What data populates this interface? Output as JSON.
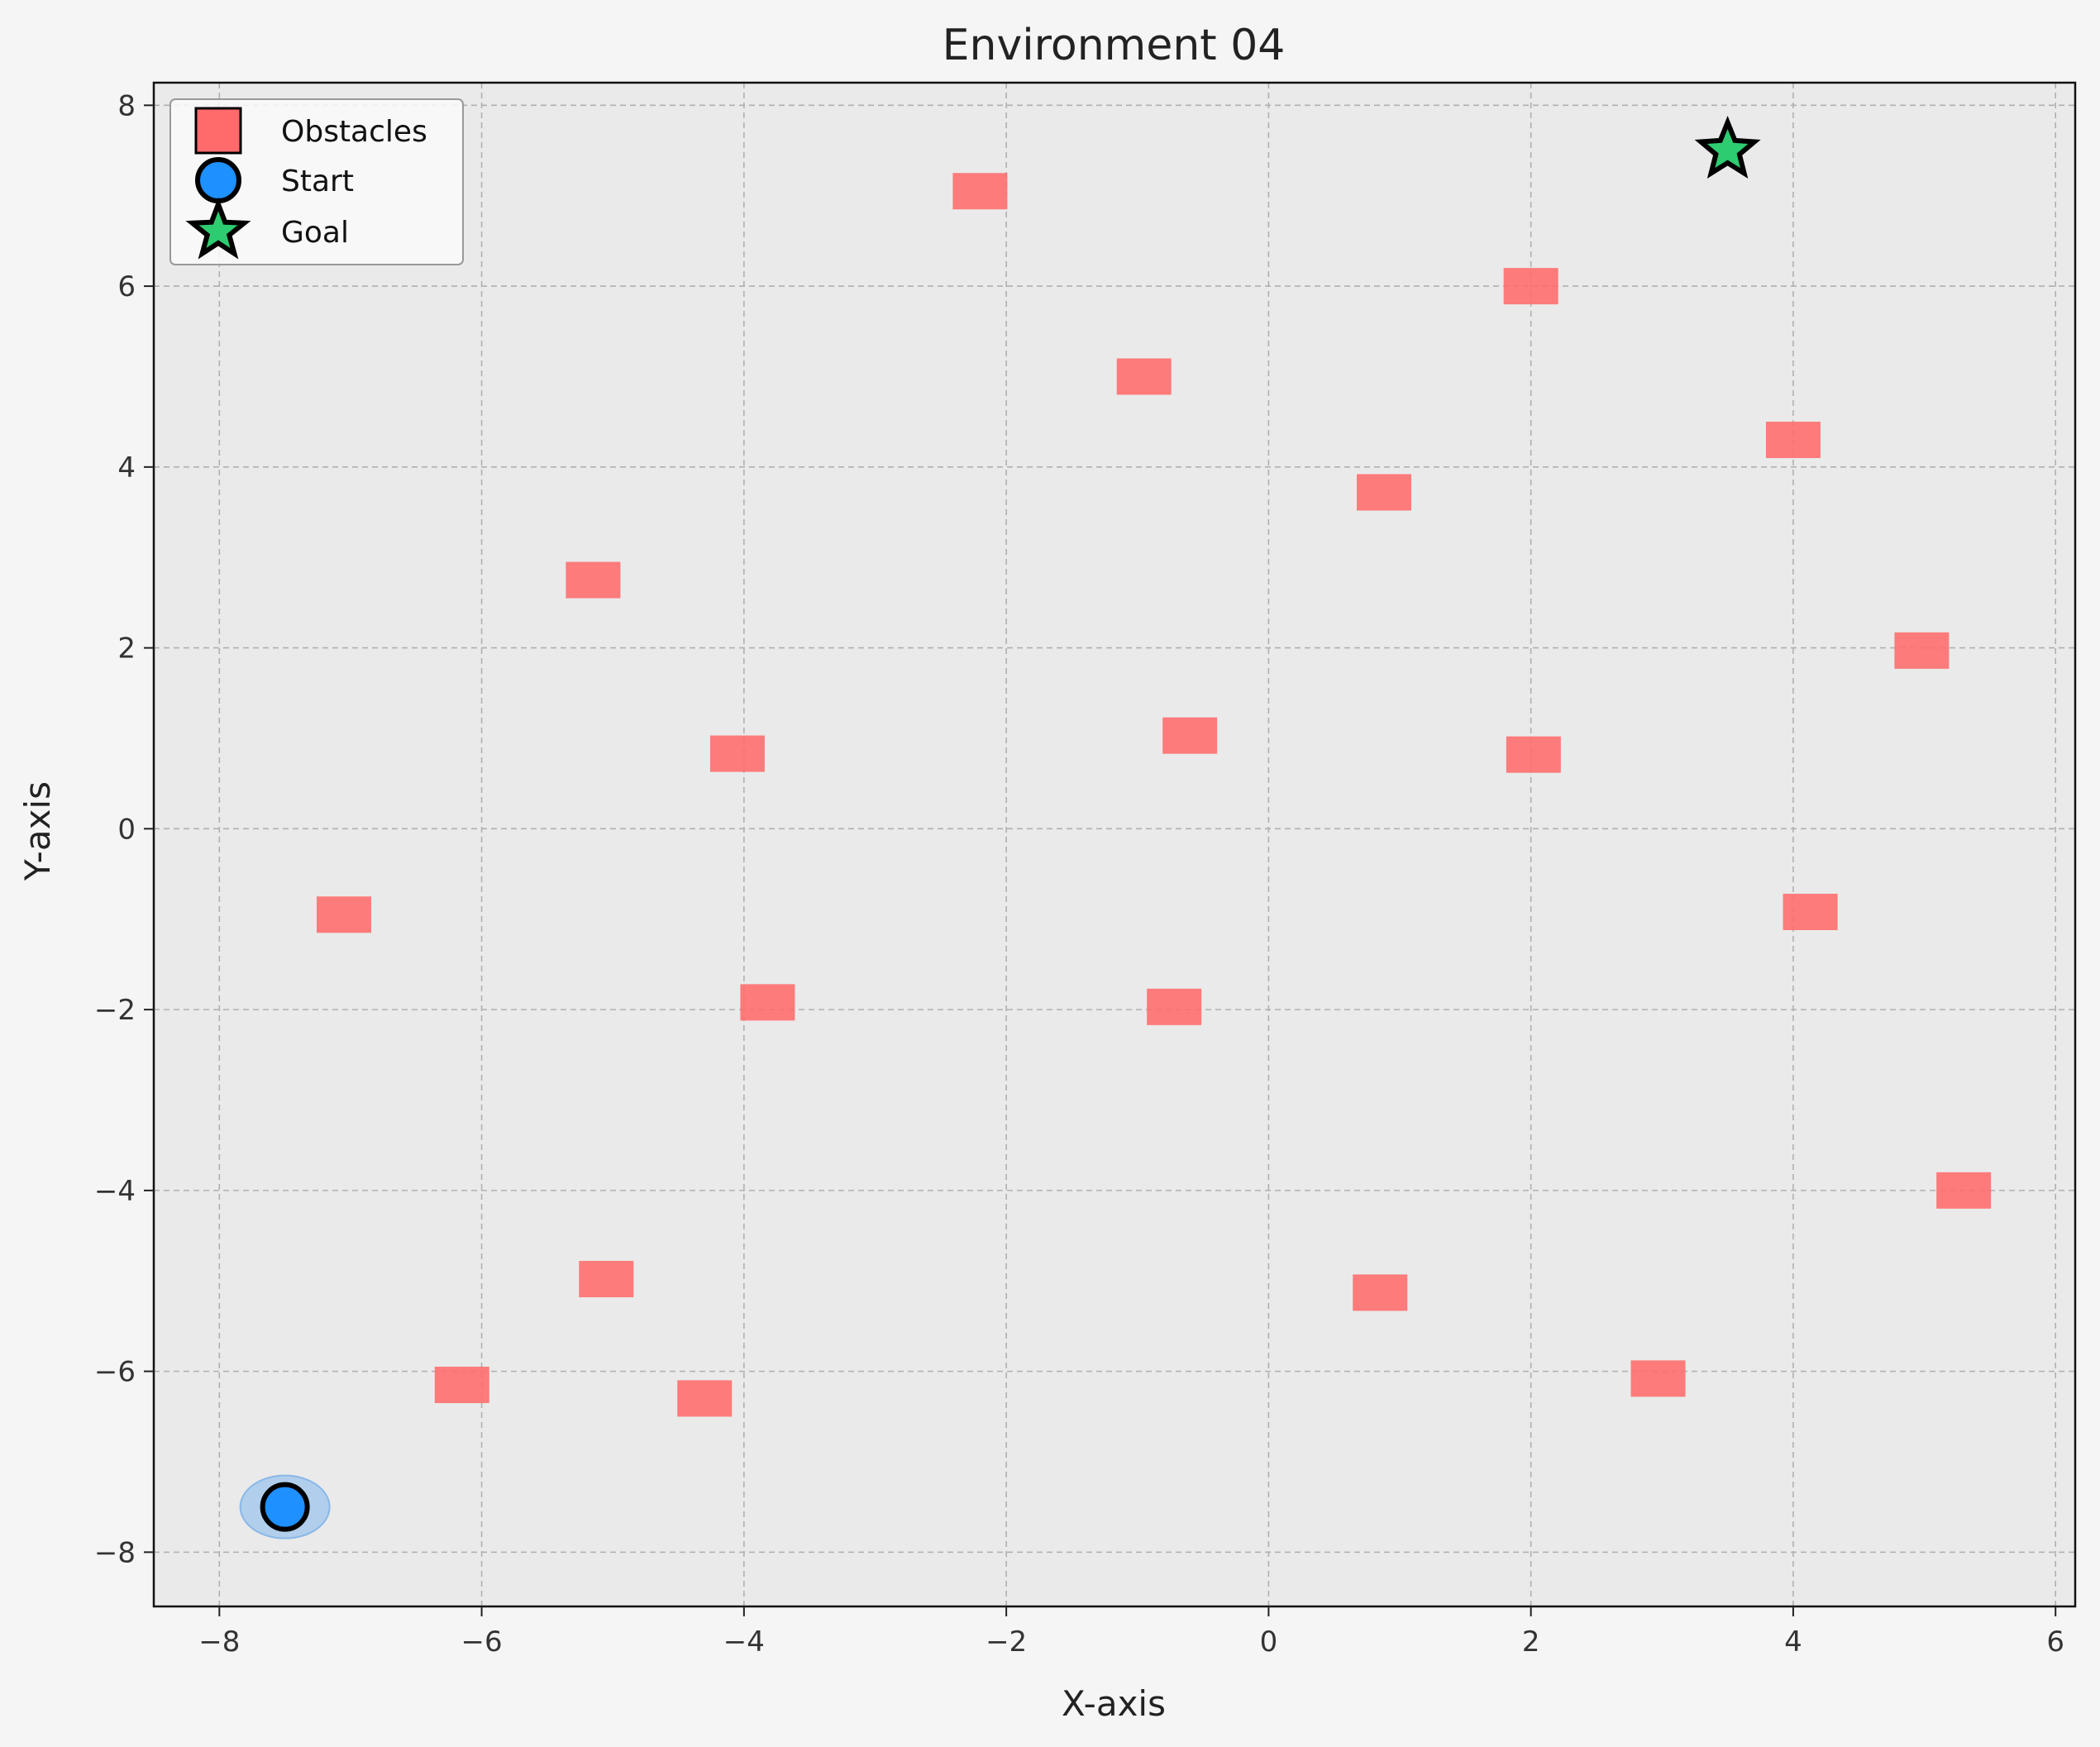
{
  "chart_data": {
    "type": "scatter",
    "title": "Environment 04",
    "xlabel": "X-axis",
    "ylabel": "Y-axis",
    "xlim": [
      -8.5,
      6.15
    ],
    "ylim": [
      -8.6,
      8.25
    ],
    "xticks": [
      -8,
      -6,
      -4,
      -2,
      0,
      2,
      4,
      6
    ],
    "yticks": [
      -8,
      -6,
      -4,
      -2,
      0,
      2,
      4,
      6,
      8
    ],
    "xtick_labels": [
      "−8",
      "−6",
      "−4",
      "−2",
      "0",
      "2",
      "4",
      "6"
    ],
    "ytick_labels": [
      "−8",
      "−6",
      "−4",
      "−2",
      "0",
      "2",
      "4",
      "6",
      "8"
    ],
    "grid": true,
    "legend_position": "upper-left",
    "legend": [
      {
        "name": "Obstacles",
        "marker": "square",
        "color": "#ff6b6b"
      },
      {
        "name": "Start",
        "marker": "circle",
        "color": "#1e90ff"
      },
      {
        "name": "Goal",
        "marker": "star",
        "color": "#2ecc71"
      }
    ],
    "obstacles": [
      {
        "x": -2.2,
        "y": 7.05
      },
      {
        "x": 2.0,
        "y": 6.0
      },
      {
        "x": -0.95,
        "y": 5.0
      },
      {
        "x": 4.0,
        "y": 4.3
      },
      {
        "x": 0.88,
        "y": 3.72
      },
      {
        "x": -5.15,
        "y": 2.75
      },
      {
        "x": 4.98,
        "y": 1.97
      },
      {
        "x": -0.6,
        "y": 1.03
      },
      {
        "x": -4.05,
        "y": 0.83
      },
      {
        "x": 2.02,
        "y": 0.82
      },
      {
        "x": -7.05,
        "y": -0.95
      },
      {
        "x": 4.13,
        "y": -0.92
      },
      {
        "x": -3.82,
        "y": -1.92
      },
      {
        "x": -0.72,
        "y": -1.97
      },
      {
        "x": 5.3,
        "y": -4.0
      },
      {
        "x": -5.05,
        "y": -4.98
      },
      {
        "x": 0.85,
        "y": -5.13
      },
      {
        "x": 2.97,
        "y": -6.08
      },
      {
        "x": -6.15,
        "y": -6.15
      },
      {
        "x": -4.3,
        "y": -6.3
      }
    ],
    "start": {
      "x": -7.5,
      "y": -7.5
    },
    "goal": {
      "x": 3.5,
      "y": 7.5
    },
    "colors": {
      "obstacle": "#ff6b6b",
      "start": "#1e90ff",
      "start_halo": "#9ec4ec",
      "goal": "#2ecc71",
      "plot_bg": "#eaeaea",
      "figure_bg": "#f5f5f5",
      "grid": "#b0b0b0"
    }
  }
}
